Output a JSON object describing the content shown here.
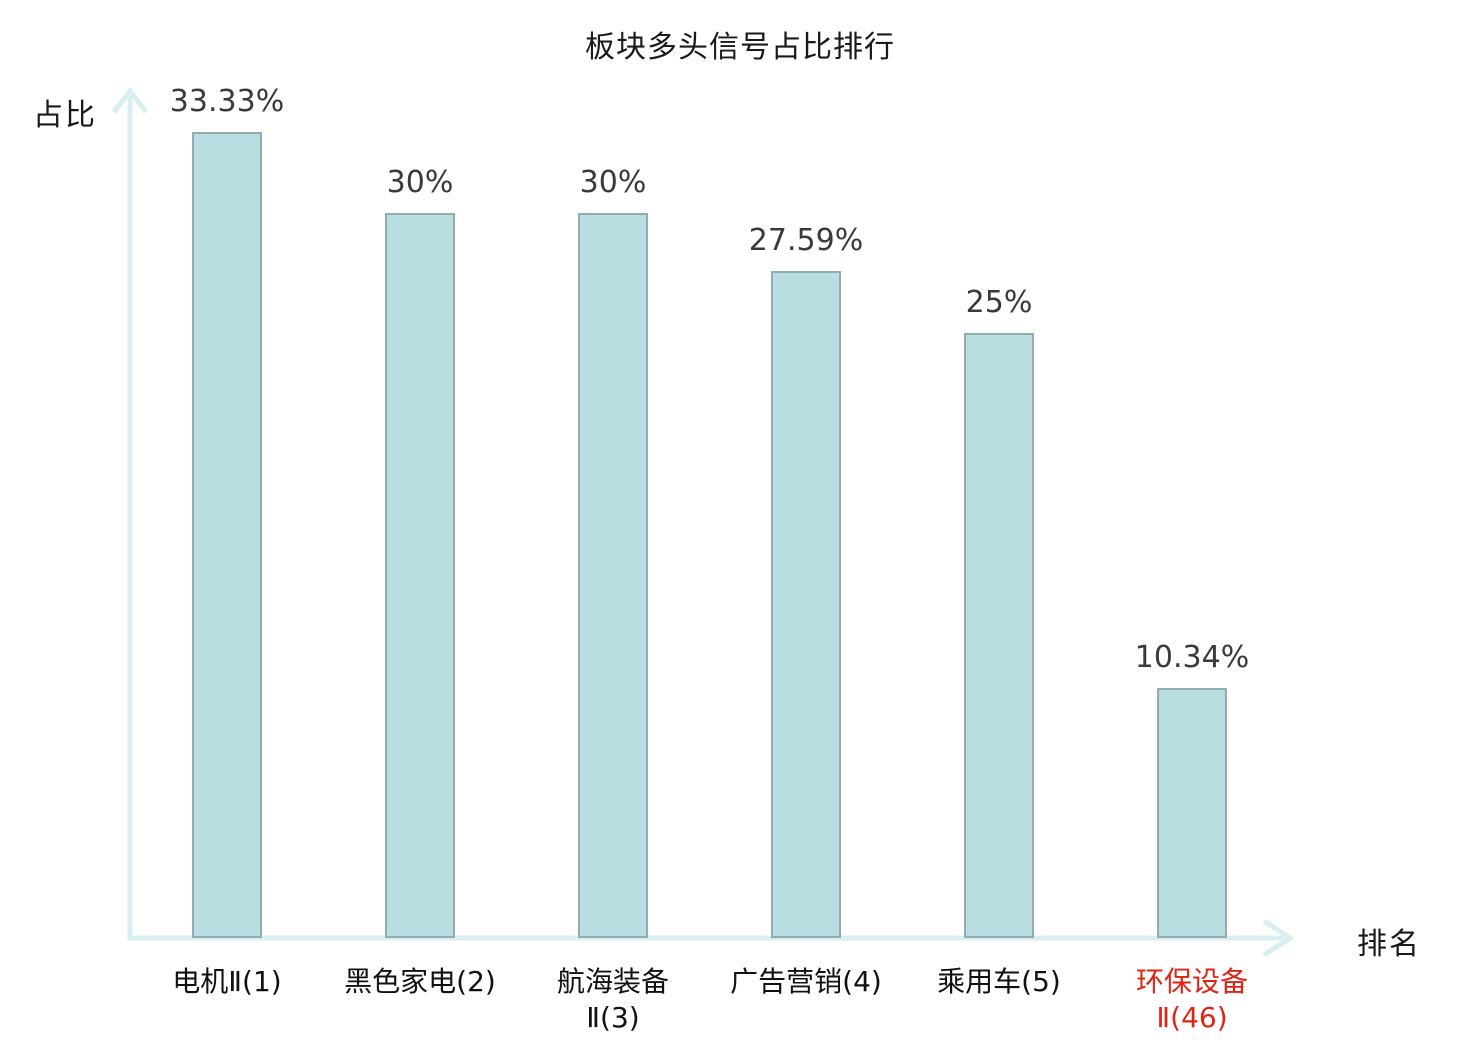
{
  "chart_data": {
    "type": "bar",
    "title": "板块多头信号占比排行",
    "xlabel": "排名",
    "ylabel": "占比",
    "categories": [
      "电机Ⅱ(1)",
      "黑色家电(2)",
      "航海装备Ⅱ(3)",
      "广告营销(4)",
      "乘用车(5)",
      "环保设备Ⅱ(46)"
    ],
    "category_lines": [
      [
        "电机Ⅱ(1)"
      ],
      [
        "黑色家电(2)"
      ],
      [
        "航海装备",
        "Ⅱ(3)"
      ],
      [
        "广告营销(4)"
      ],
      [
        "乘用车(5)"
      ],
      [
        "环保设备",
        "Ⅱ(46)"
      ]
    ],
    "values": [
      33.33,
      30,
      30,
      27.59,
      25,
      10.34
    ],
    "value_labels": [
      "33.33%",
      "30%",
      "30%",
      "27.59%",
      "25%",
      "10.34%"
    ],
    "ylim": [
      0,
      35
    ],
    "grid": false,
    "legend": false,
    "highlight_index": 5,
    "colors": {
      "bar_fill": "#b8dee2",
      "bar_stroke": "#94acb1",
      "axis": "#d9eef0",
      "value_text": "#3a3a3a",
      "category_text": "#111111",
      "highlight_text": "#e02414",
      "title_text": "#1a1a1a"
    }
  }
}
